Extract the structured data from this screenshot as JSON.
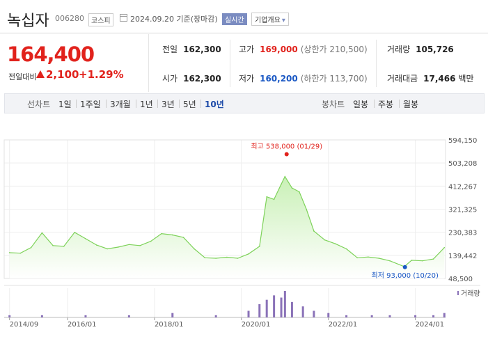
{
  "stock": {
    "name": "녹십자",
    "code": "006280",
    "market": "코스피",
    "date": "2024.09.20",
    "date_note": "기준(장마감)",
    "live_label": "실시간",
    "info_label": "기업개요",
    "info_arrow": "▾"
  },
  "price": {
    "current": "164,400",
    "change_label": "전일대비",
    "change": "2,100",
    "change_pct": "+1.29%"
  },
  "stats": {
    "prev_close_label": "전일",
    "prev_close": "162,300",
    "open_label": "시가",
    "open": "162,300",
    "high_label": "고가",
    "high": "169,000",
    "upper_limit": "(상한가 210,500)",
    "low_label": "저가",
    "low": "160,200",
    "lower_limit": "(하한가 113,700)",
    "volume_label": "거래량",
    "volume": "105,726",
    "amount_label": "거래대금",
    "amount": "17,466",
    "amount_unit": "백만"
  },
  "line_tabs": {
    "title": "선차트",
    "items": [
      "1일",
      "1주일",
      "3개월",
      "1년",
      "3년",
      "5년",
      "10년"
    ],
    "active": "10년"
  },
  "candle_tabs": {
    "title": "봉차트",
    "items": [
      "일봉",
      "주봉",
      "월봉"
    ]
  },
  "colors": {
    "up": "#e1221c",
    "down": "#1a58c4",
    "line": "#7ed25a",
    "fill_top": "#c9f0b6",
    "volume": "#8a72b8"
  },
  "chart_data": {
    "type": "area",
    "y_ticks": [
      "594,150",
      "503,208",
      "412,267",
      "321,325",
      "230,383",
      "139,442",
      "48,500"
    ],
    "ylim": [
      48500,
      594150
    ],
    "x_ticks": [
      "2014/09",
      "2016/01",
      "2018/01",
      "2020/01",
      "2022/01",
      "2024/01"
    ],
    "x_tick_dates": [
      "2014-09",
      "2016-01",
      "2018-01",
      "2020-01",
      "2022-01",
      "2024-01"
    ],
    "max_label": "최고 538,000 (01/29)",
    "max_date": "2021-01-29",
    "max_value": 538000,
    "min_label": "최저 93,000 (10/20)",
    "min_date": "2023-10-20",
    "min_value": 93000,
    "volume_label": "거래량",
    "series": [
      {
        "x": [
          "2014-09",
          "2014-12",
          "2015-03",
          "2015-06",
          "2015-09",
          "2015-12",
          "2016-03",
          "2016-06",
          "2016-09",
          "2016-12",
          "2017-03",
          "2017-06",
          "2017-09",
          "2017-12",
          "2018-03",
          "2018-06",
          "2018-09",
          "2018-12",
          "2019-03",
          "2019-06",
          "2019-09",
          "2019-12",
          "2020-03",
          "2020-06",
          "2020-08",
          "2020-10",
          "2020-12",
          "2021-01",
          "2021-03",
          "2021-05",
          "2021-07",
          "2021-09",
          "2021-12",
          "2022-03",
          "2022-06",
          "2022-09",
          "2022-12",
          "2023-03",
          "2023-06",
          "2023-10",
          "2023-12",
          "2024-03",
          "2024-06",
          "2024-09"
        ],
        "values": [
          150000,
          148000,
          170000,
          228000,
          178000,
          175000,
          230000,
          205000,
          180000,
          165000,
          172000,
          182000,
          178000,
          195000,
          225000,
          220000,
          210000,
          165000,
          130000,
          128000,
          132000,
          128000,
          145000,
          175000,
          370000,
          360000,
          420000,
          450000,
          405000,
          390000,
          320000,
          235000,
          200000,
          185000,
          165000,
          130000,
          133000,
          128000,
          118000,
          95000,
          120000,
          118000,
          125000,
          170000
        ]
      }
    ],
    "volume_series": {
      "x": [
        "2014-09",
        "2015-06",
        "2016-06",
        "2017-06",
        "2018-06",
        "2019-06",
        "2020-03",
        "2020-06",
        "2020-08",
        "2020-10",
        "2020-12",
        "2021-01",
        "2021-03",
        "2021-06",
        "2021-09",
        "2022-01",
        "2022-06",
        "2023-01",
        "2023-06",
        "2024-01",
        "2024-06",
        "2024-09"
      ],
      "values": [
        1,
        1,
        1,
        1,
        2,
        1,
        3,
        6,
        8,
        10,
        9,
        12,
        7,
        5,
        3,
        2,
        1,
        1,
        1,
        1,
        1,
        2
      ]
    }
  }
}
